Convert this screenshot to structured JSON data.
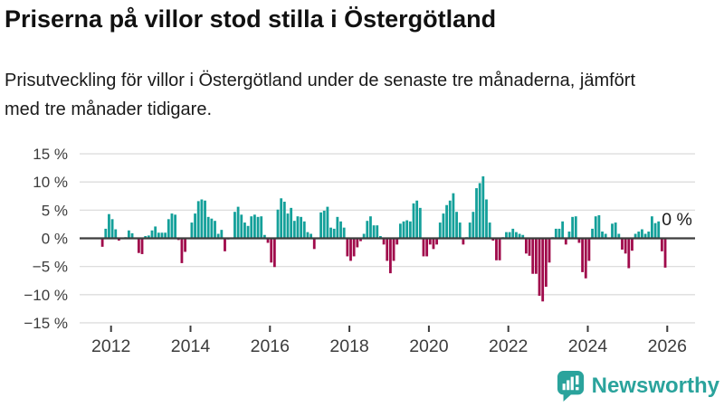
{
  "header": {
    "title": "Priserna på villor stod stilla i Östergötland",
    "subtitle": "Prisutveckling för villor i Östergötland under de senaste tre månaderna, jämfört med tre månader tidigare."
  },
  "chart_data": {
    "type": "bar",
    "unit": "%",
    "frequency": "monthly",
    "start_month": "2011-10",
    "values": [
      -1.5,
      1.7,
      4.3,
      3.4,
      1.6,
      -0.4,
      0.1,
      0.2,
      1.4,
      0.9,
      0.1,
      -2.6,
      -2.8,
      0.4,
      0.5,
      1.4,
      2.1,
      1.0,
      1.0,
      1.0,
      3.4,
      4.4,
      4.2,
      -0.3,
      -4.4,
      -2.4,
      0.1,
      2.8,
      4.4,
      6.6,
      6.9,
      6.7,
      3.8,
      3.5,
      3.1,
      0.8,
      1.5,
      -2.3,
      -0.2,
      0.1,
      4.7,
      5.6,
      4.2,
      2.8,
      2.2,
      3.9,
      4.2,
      3.8,
      3.9,
      0.6,
      -0.8,
      -4.3,
      -5.1,
      5.1,
      7.1,
      6.5,
      4.4,
      5.4,
      3.1,
      3.9,
      3.8,
      3.0,
      1.1,
      0.8,
      -1.9,
      0.1,
      4.6,
      4.9,
      5.6,
      1.9,
      1.7,
      3.8,
      3.0,
      1.9,
      -3.2,
      -4.0,
      -3.2,
      -1.6,
      -0.5,
      0.8,
      3.1,
      3.9,
      2.3,
      2.3,
      0.4,
      -1.1,
      -4.0,
      -6.2,
      -4.0,
      -1.1,
      2.6,
      3.0,
      3.2,
      3.0,
      6.2,
      6.7,
      5.4,
      -3.2,
      -3.2,
      -1.1,
      -1.9,
      -1.1,
      2.8,
      4.4,
      5.9,
      6.7,
      8.0,
      4.7,
      2.8,
      -1.1,
      0.2,
      2.8,
      4.7,
      8.9,
      9.8,
      11.0,
      6.9,
      2.8,
      -0.4,
      -3.9,
      -3.9,
      0.2,
      1.1,
      1.1,
      1.7,
      1.1,
      0.8,
      0.6,
      -2.7,
      -3.1,
      -6.3,
      -6.3,
      -10.2,
      -11.2,
      -8.6,
      -4.3,
      0.2,
      1.7,
      1.7,
      3.0,
      -1.1,
      1.2,
      3.8,
      3.9,
      -0.8,
      -6.0,
      -7.1,
      -4.0,
      1.7,
      3.9,
      4.1,
      1.2,
      0.8,
      0.1,
      2.6,
      2.8,
      0.8,
      -2.0,
      -2.7,
      -5.3,
      -2.2,
      0.8,
      1.2,
      1.6,
      0.8,
      1.2,
      3.9,
      2.7,
      3.0,
      -2.3,
      -5.2,
      0.0
    ],
    "ylim": [
      -15,
      15
    ],
    "y_ticks": [
      {
        "value": 15,
        "label": "15 %"
      },
      {
        "value": 10,
        "label": "10 %"
      },
      {
        "value": 5,
        "label": "5 %"
      },
      {
        "value": 0,
        "label": "0 %"
      },
      {
        "value": -5,
        "label": "−5 %"
      },
      {
        "value": -10,
        "label": "−10 %"
      },
      {
        "value": -15,
        "label": "−15 %"
      }
    ],
    "x_ticks": [
      {
        "year": 2012,
        "label": "2012"
      },
      {
        "year": 2014,
        "label": "2014"
      },
      {
        "year": 2016,
        "label": "2016"
      },
      {
        "year": 2018,
        "label": "2018"
      },
      {
        "year": 2020,
        "label": "2020"
      },
      {
        "year": 2022,
        "label": "2022"
      },
      {
        "year": 2024,
        "label": "2024"
      },
      {
        "year": 2026,
        "label": "2026"
      }
    ],
    "annotation": {
      "label": "0 %",
      "month": "2026-01"
    },
    "grid": true,
    "legend": false,
    "colors": {
      "positive": "#14a09a",
      "negative": "#a00a4b",
      "grid": "#dddddd",
      "zero_line": "#3d3d3d",
      "axis_text": "#3c3c3c",
      "annotation_text": "#1a1a1a"
    }
  },
  "footer": {
    "brand": "Newsworthy",
    "brand_color": "#2aa39c"
  }
}
